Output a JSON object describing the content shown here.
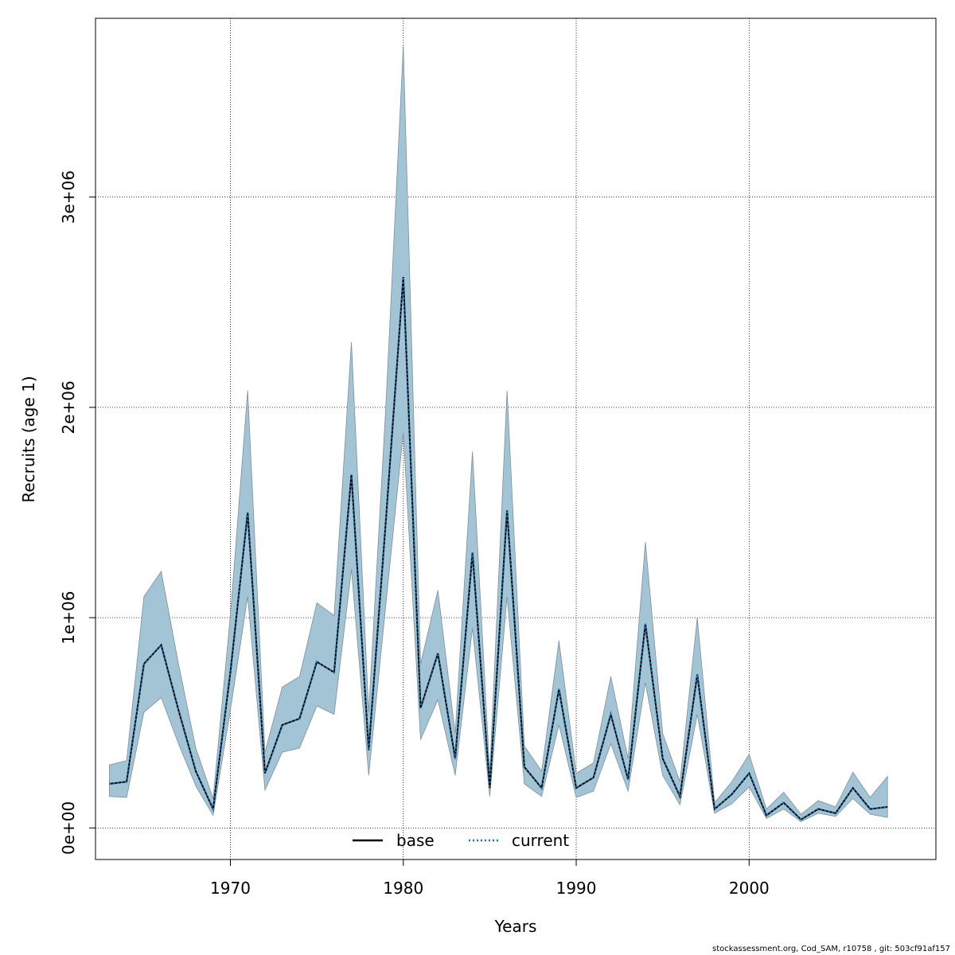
{
  "chart_data": {
    "type": "line",
    "xlabel": "Years",
    "ylabel": "Recruits (age 1)",
    "xlim": [
      1962.2,
      2010.8
    ],
    "ylim": [
      -150000,
      3850000
    ],
    "x_ticks": [
      1970,
      1980,
      1990,
      2000
    ],
    "y_ticks": [
      0,
      1000000,
      2000000,
      3000000
    ],
    "y_tick_labels": [
      "0e+00",
      "1e+06",
      "2e+06",
      "3e+06"
    ],
    "grid": true,
    "legend_position": "bottom",
    "x": [
      1963,
      1964,
      1965,
      1966,
      1967,
      1968,
      1969,
      1970,
      1971,
      1972,
      1973,
      1974,
      1975,
      1976,
      1977,
      1978,
      1979,
      1980,
      1981,
      1982,
      1983,
      1984,
      1985,
      1986,
      1987,
      1988,
      1989,
      1990,
      1991,
      1992,
      1993,
      1994,
      1995,
      1996,
      1997,
      1998,
      1999,
      2000,
      2001,
      2002,
      2003,
      2004,
      2005,
      2006,
      2007,
      2008
    ],
    "series": [
      {
        "name": "base",
        "style": "solid",
        "color": "#000000",
        "values": [
          210000,
          220000,
          780000,
          870000,
          560000,
          270000,
          90000,
          740000,
          1500000,
          260000,
          490000,
          520000,
          790000,
          740000,
          1680000,
          370000,
          1470000,
          2620000,
          570000,
          830000,
          330000,
          1310000,
          190000,
          1510000,
          290000,
          190000,
          660000,
          190000,
          240000,
          540000,
          230000,
          970000,
          330000,
          150000,
          730000,
          90000,
          160000,
          260000,
          60000,
          120000,
          40000,
          90000,
          70000,
          190000,
          90000,
          100000
        ]
      },
      {
        "name": "current",
        "style": "dotted",
        "color": "#1f6fa8",
        "values": [
          210000,
          220000,
          780000,
          870000,
          560000,
          270000,
          90000,
          740000,
          1500000,
          260000,
          490000,
          520000,
          790000,
          740000,
          1680000,
          370000,
          1470000,
          2620000,
          570000,
          830000,
          330000,
          1310000,
          190000,
          1510000,
          290000,
          190000,
          660000,
          190000,
          240000,
          540000,
          230000,
          970000,
          330000,
          150000,
          730000,
          90000,
          160000,
          260000,
          60000,
          120000,
          40000,
          90000,
          70000,
          190000,
          90000,
          100000
        ]
      }
    ],
    "band": {
      "color": "#a3c4d4",
      "lower": [
        150000,
        145000,
        550000,
        620000,
        400000,
        200000,
        60000,
        560000,
        1100000,
        180000,
        360000,
        380000,
        580000,
        540000,
        1230000,
        250000,
        1070000,
        1880000,
        420000,
        610000,
        250000,
        950000,
        150000,
        1100000,
        210000,
        150000,
        490000,
        145000,
        175000,
        400000,
        175000,
        690000,
        250000,
        110000,
        540000,
        70000,
        115000,
        195000,
        45000,
        90000,
        30000,
        70000,
        55000,
        140000,
        65000,
        50000
      ],
      "upper": [
        300000,
        320000,
        1100000,
        1220000,
        780000,
        380000,
        140000,
        1010000,
        2080000,
        360000,
        670000,
        720000,
        1070000,
        1010000,
        2310000,
        550000,
        2020000,
        3720000,
        780000,
        1130000,
        450000,
        1790000,
        260000,
        2080000,
        390000,
        270000,
        890000,
        260000,
        310000,
        720000,
        330000,
        1360000,
        450000,
        220000,
        1000000,
        120000,
        220000,
        350000,
        90000,
        170000,
        65000,
        130000,
        100000,
        265000,
        145000,
        245000
      ]
    }
  },
  "footer": "stockassessment.org, Cod_SAM, r10758 , git: 503cf91af157"
}
